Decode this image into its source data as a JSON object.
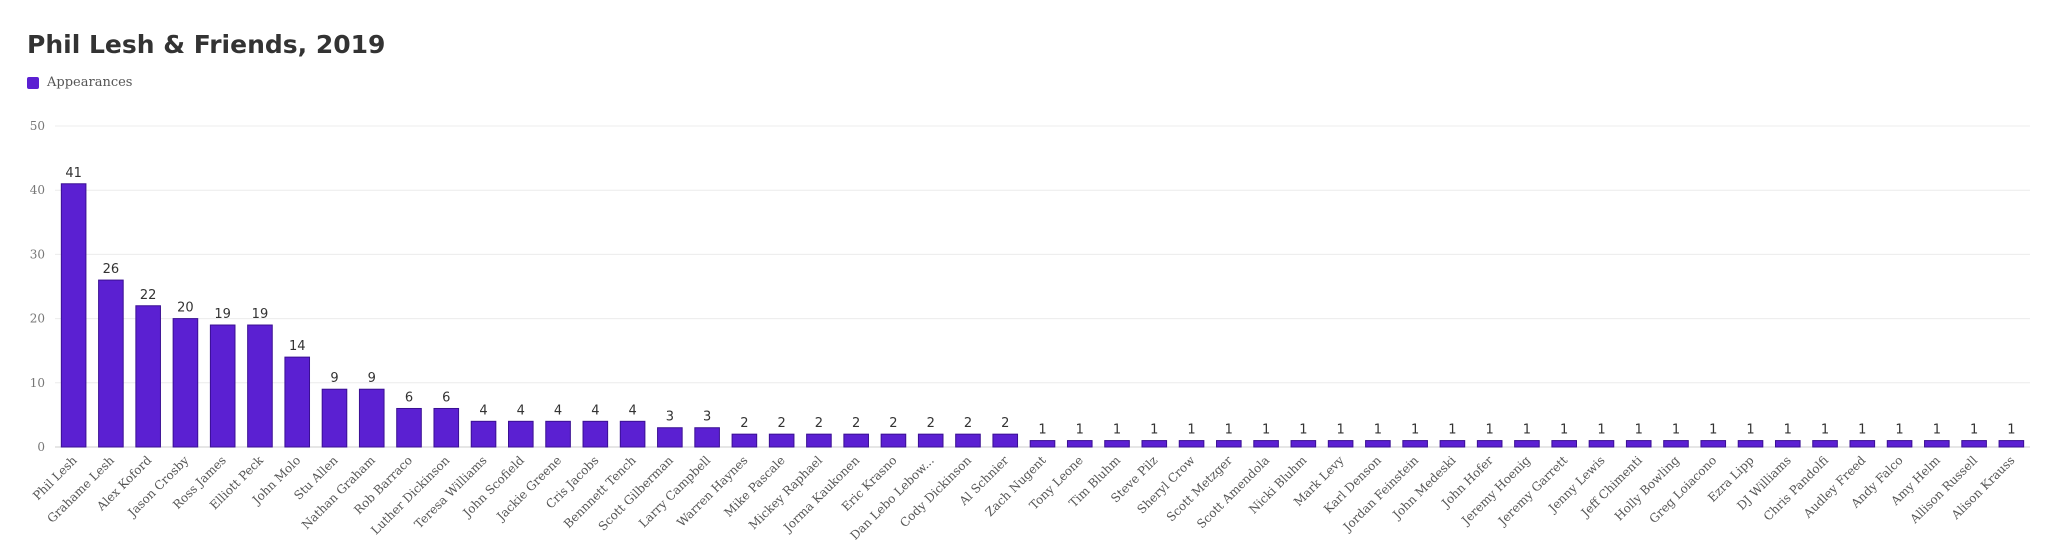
{
  "chart_data": {
    "type": "bar",
    "title": "Phil Lesh & Friends, 2019",
    "xlabel": "",
    "ylabel": "",
    "ylim": [
      0,
      50
    ],
    "yticks": [
      0,
      10,
      20,
      30,
      40,
      50
    ],
    "grid": true,
    "legend_position": "top-left",
    "bar_color": "#5b20d2",
    "categories": [
      "Phil Lesh",
      "Grahame Lesh",
      "Alex Koford",
      "Jason Crosby",
      "Ross James",
      "Elliott Peck",
      "John Molo",
      "Stu Allen",
      "Nathan Graham",
      "Rob Barraco",
      "Luther Dickinson",
      "Teresa Williams",
      "John Scofield",
      "Jackie Greene",
      "Cris Jacobs",
      "Bennnett Tench",
      "Scott Gilberman",
      "Larry Campbell",
      "Warren Haynes",
      "Mike Pascale",
      "Mickey Raphael",
      "Jorma Kaukonen",
      "Eric Krasno",
      "Dan Lebo Lebow...",
      "Cody Dickinson",
      "Al Schnier",
      "Zach Nugent",
      "Tony Leone",
      "Tim Bluhm",
      "Steve Pilz",
      "Sheryl Crow",
      "Scott Metzger",
      "Scott Amendola",
      "Nicki Bluhm",
      "Mark Levy",
      "Karl Denson",
      "Jordan Feinstein",
      "John Medeski",
      "John Hofer",
      "Jeremy Hoenig",
      "Jeremy Garrett",
      "Jenny Lewis",
      "Jeff Chimenti",
      "Holly Bowling",
      "Greg Loiacono",
      "Ezra Lipp",
      "DJ Williams",
      "Chris Pandolfi",
      "Audley Freed",
      "Andy Falco",
      "Amy Helm",
      "Allison Russell",
      "Alison Krauss"
    ],
    "series": [
      {
        "name": "Appearances",
        "values": [
          41,
          26,
          22,
          20,
          19,
          19,
          14,
          9,
          9,
          6,
          6,
          4,
          4,
          4,
          4,
          4,
          3,
          3,
          2,
          2,
          2,
          2,
          2,
          2,
          2,
          2,
          1,
          1,
          1,
          1,
          1,
          1,
          1,
          1,
          1,
          1,
          1,
          1,
          1,
          1,
          1,
          1,
          1,
          1,
          1,
          1,
          1,
          1,
          1,
          1,
          1,
          1,
          1
        ]
      }
    ]
  }
}
